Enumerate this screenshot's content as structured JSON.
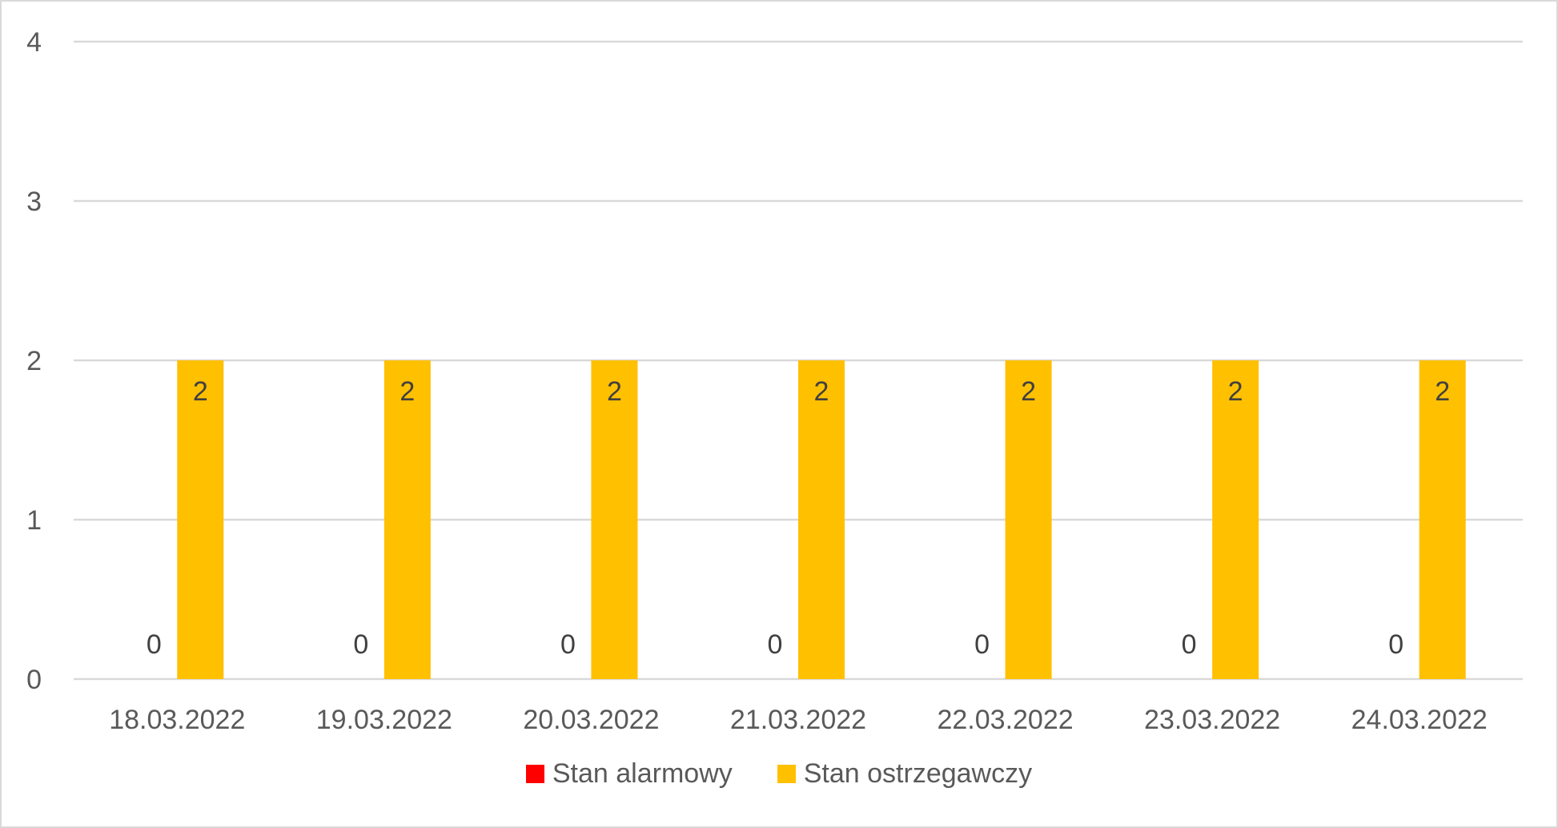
{
  "chart_data": {
    "type": "bar",
    "categories": [
      "18.03.2022",
      "19.03.2022",
      "20.03.2022",
      "21.03.2022",
      "22.03.2022",
      "23.03.2022",
      "24.03.2022"
    ],
    "series": [
      {
        "name": "Stan alarmowy",
        "values": [
          0,
          0,
          0,
          0,
          0,
          0,
          0
        ],
        "color": "#ff0000"
      },
      {
        "name": "Stan ostrzegawczy",
        "values": [
          2,
          2,
          2,
          2,
          2,
          2,
          2
        ],
        "color": "#ffc000"
      }
    ],
    "title": "",
    "xlabel": "",
    "ylabel": "",
    "ylim": [
      0,
      4
    ],
    "yticks": [
      "0",
      "1",
      "2",
      "3",
      "4"
    ],
    "grid": true,
    "legend_position": "bottom",
    "data_labels": true
  }
}
